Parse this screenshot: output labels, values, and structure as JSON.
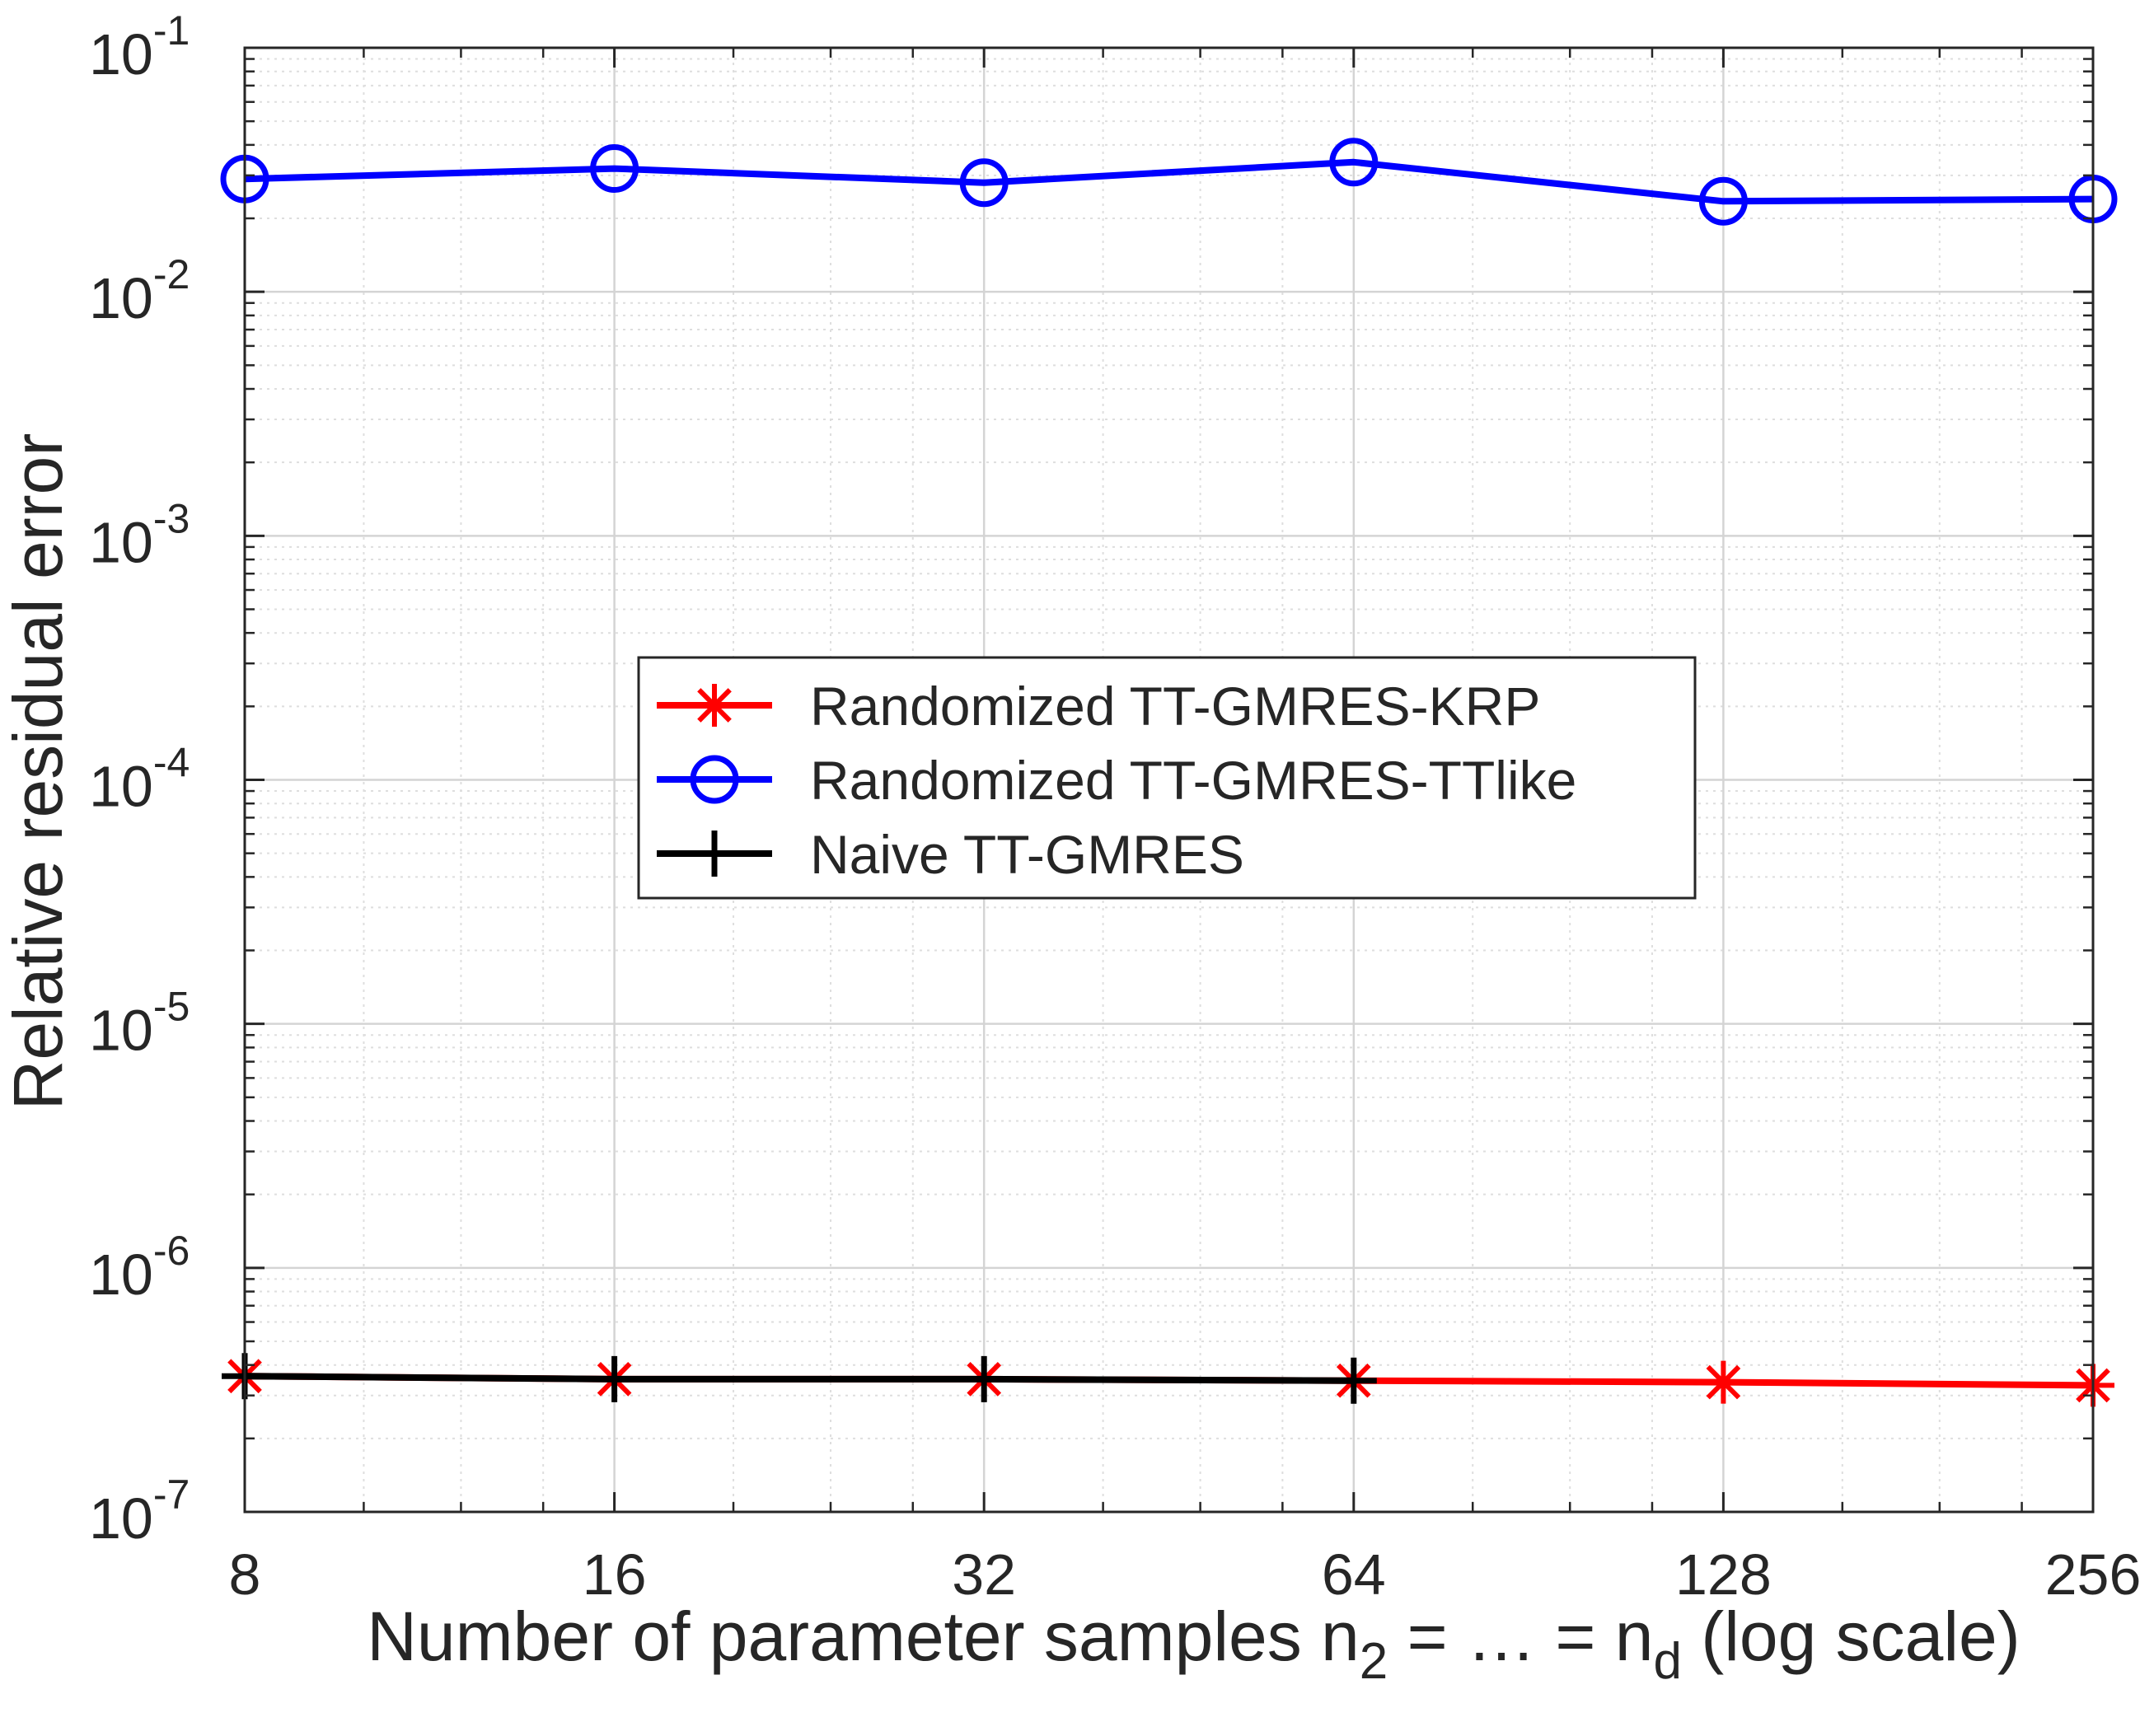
{
  "chart_data": {
    "type": "line",
    "title": "",
    "xlabel": {
      "prefix": "Number of parameter samples n",
      "sub1": "2",
      "middle": " = … = n",
      "sub2": "d",
      "suffix": " (log scale)"
    },
    "ylabel": "Relative residual error",
    "xscale": "log2",
    "yscale": "log10",
    "xlim": [
      8,
      256
    ],
    "ylim": [
      1e-07,
      0.1
    ],
    "grid": true,
    "minor_grid": true,
    "x_ticks": [
      {
        "value": 8,
        "label": "8"
      },
      {
        "value": 16,
        "label": "16"
      },
      {
        "value": 32,
        "label": "32"
      },
      {
        "value": 64,
        "label": "64"
      },
      {
        "value": 128,
        "label": "128"
      },
      {
        "value": 256,
        "label": "256"
      }
    ],
    "y_ticks": [
      {
        "exp": -7,
        "base": "10",
        "sup": "-7"
      },
      {
        "exp": -6,
        "base": "10",
        "sup": "-6"
      },
      {
        "exp": -5,
        "base": "10",
        "sup": "-5"
      },
      {
        "exp": -4,
        "base": "10",
        "sup": "-4"
      },
      {
        "exp": -3,
        "base": "10",
        "sup": "-3"
      },
      {
        "exp": -2,
        "base": "10",
        "sup": "-2"
      },
      {
        "exp": -1,
        "base": "10",
        "sup": "-1"
      }
    ],
    "legend_position": "center",
    "x": [
      8,
      16,
      32,
      64,
      128,
      256
    ],
    "series": [
      {
        "name": "Randomized TT-GMRES-KRP",
        "color": "#ff0000",
        "marker": "asterisk",
        "x": [
          8,
          16,
          32,
          64,
          128,
          256
        ],
        "values": [
          3.6e-07,
          3.5e-07,
          3.5e-07,
          3.45e-07,
          3.4e-07,
          3.3e-07
        ]
      },
      {
        "name": "Randomized TT-GMRES-TTlike",
        "color": "#0000ff",
        "marker": "circle",
        "x": [
          8,
          16,
          32,
          64,
          128,
          256
        ],
        "values": [
          0.029,
          0.032,
          0.028,
          0.034,
          0.0235,
          0.024
        ]
      },
      {
        "name": "Naive TT-GMRES",
        "color": "#000000",
        "marker": "plus",
        "x": [
          8,
          16,
          32,
          64
        ],
        "values": [
          3.6e-07,
          3.5e-07,
          3.5e-07,
          3.45e-07
        ]
      }
    ]
  }
}
